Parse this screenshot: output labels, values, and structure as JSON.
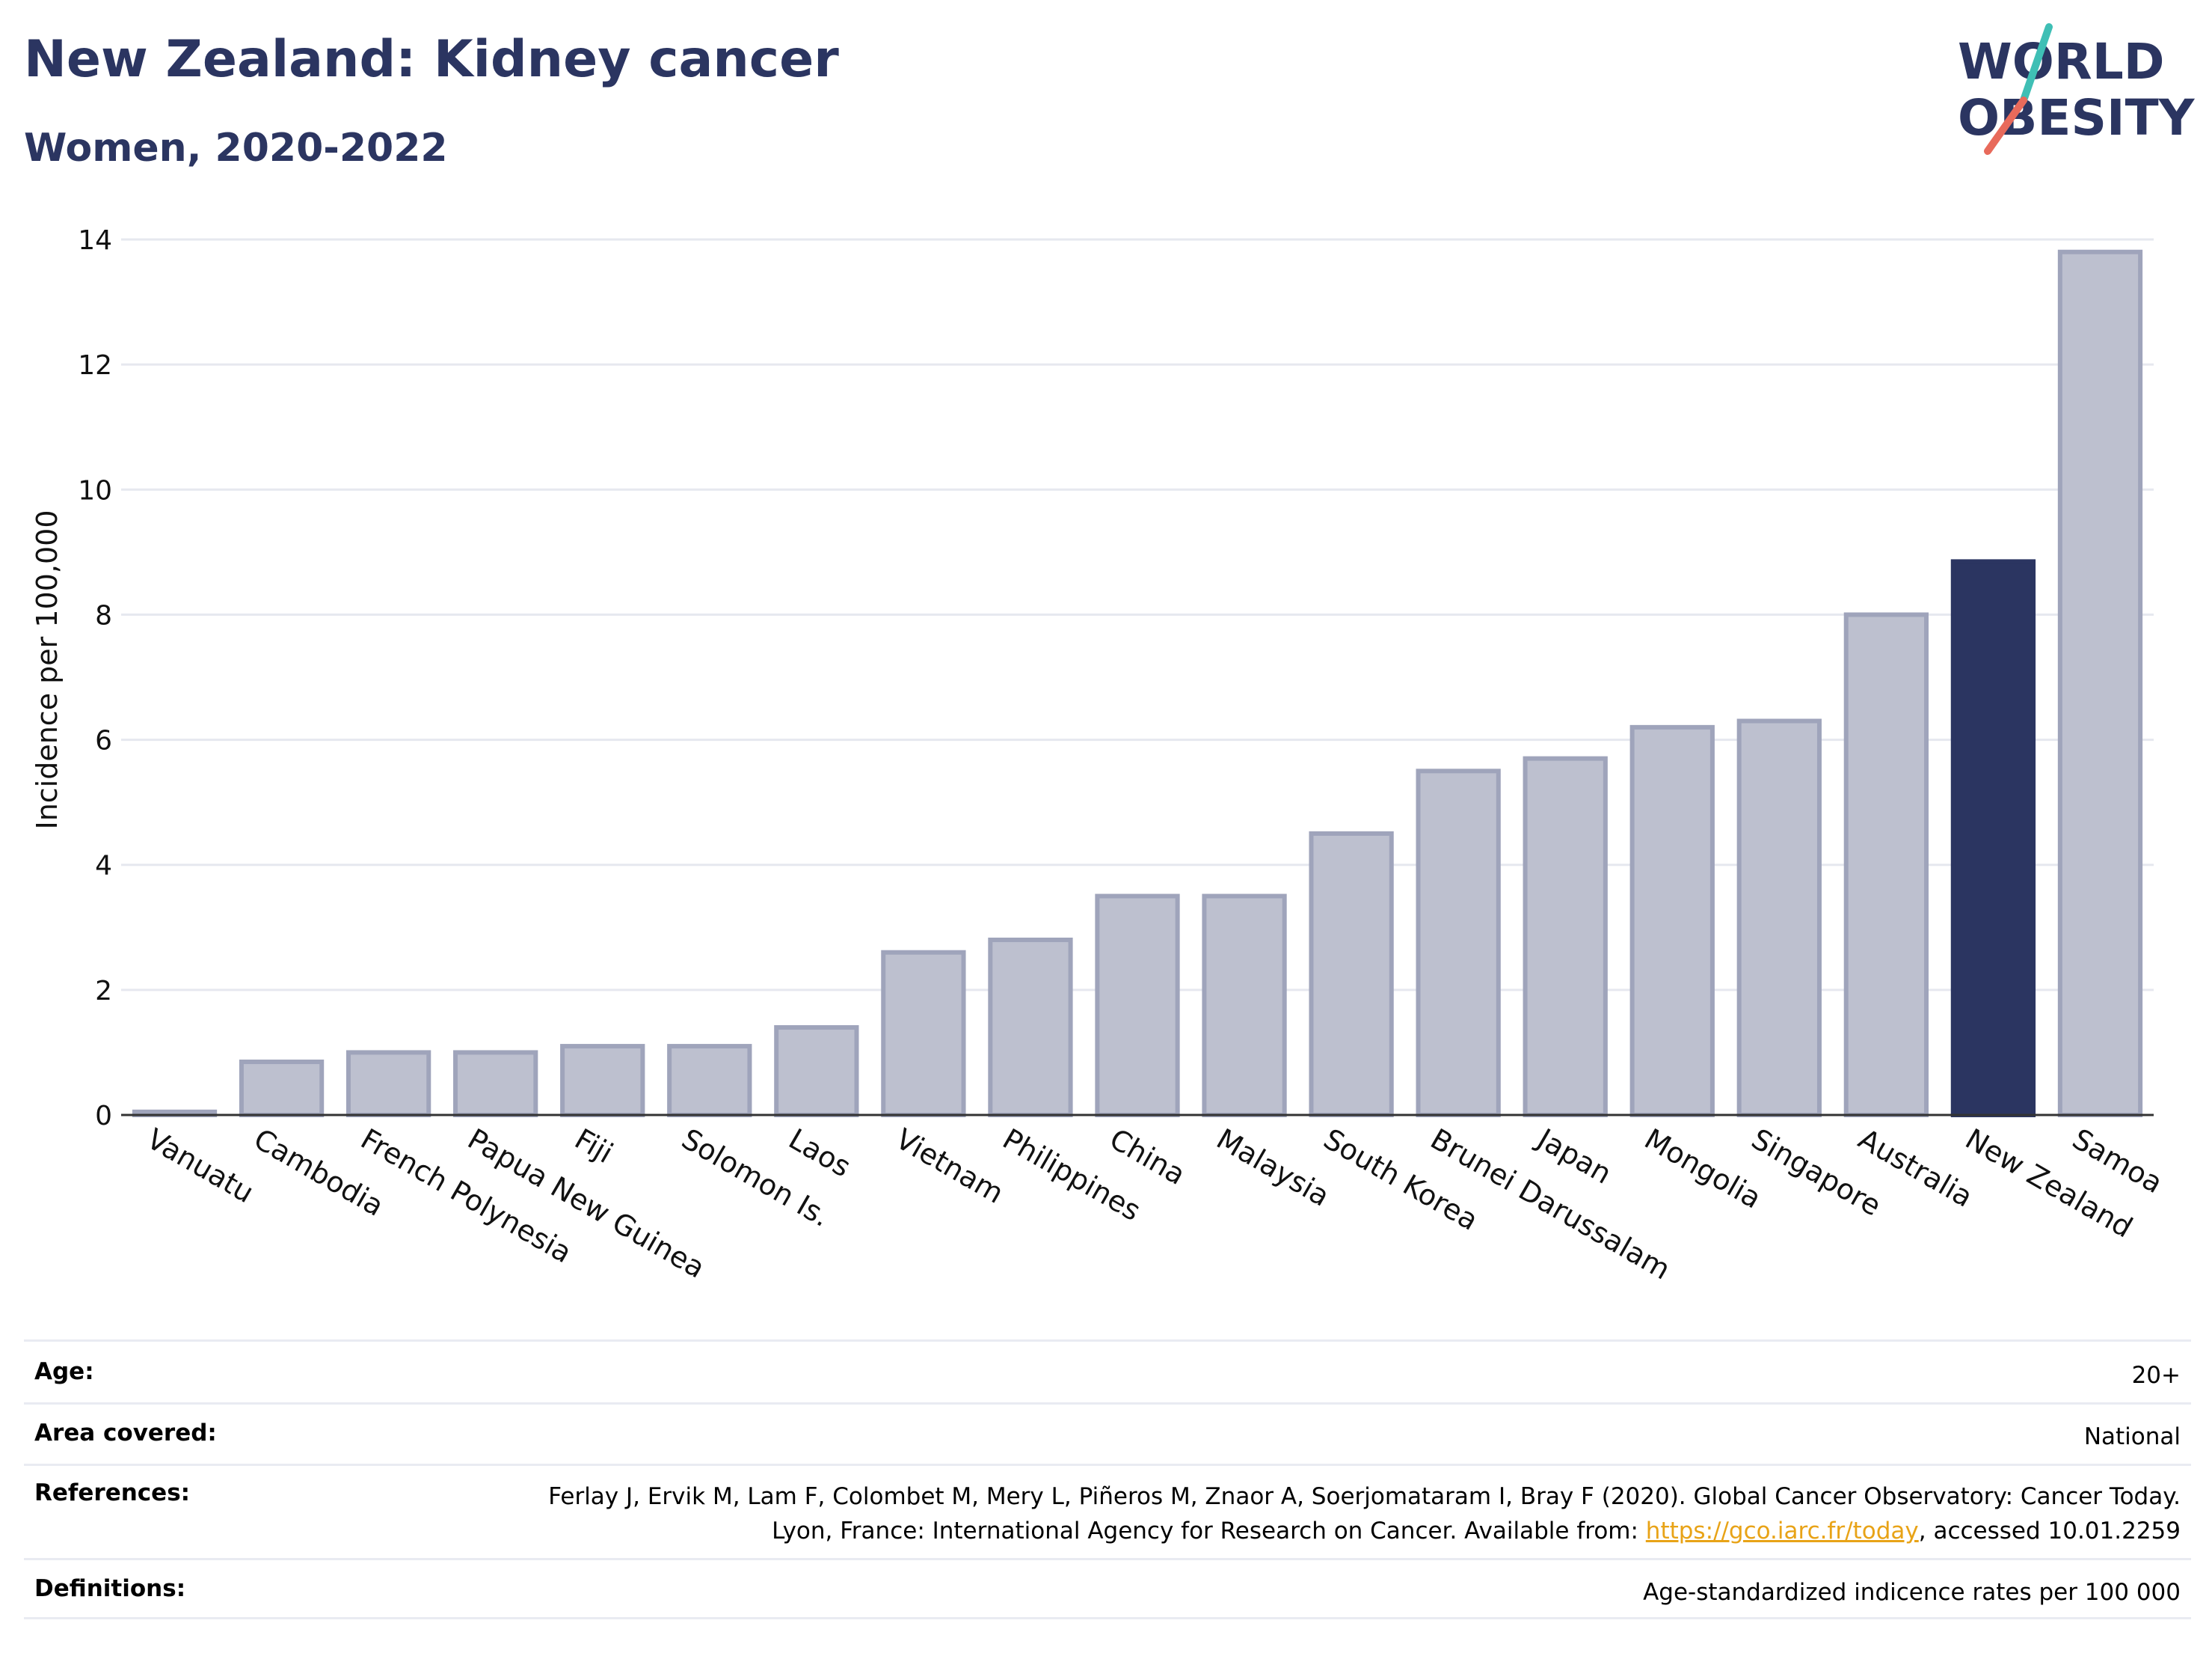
{
  "header": {
    "title": "New Zealand: Kidney cancer",
    "subtitle": "Women, 2020-2022"
  },
  "logo": {
    "line1": "WORLD",
    "line2": "OBESITY",
    "text_color": "#2b3561",
    "accent_colors": [
      "#3fbfb5",
      "#e86a5b"
    ]
  },
  "chart_data": {
    "type": "bar",
    "ylabel": "Incidence per 100,000",
    "xlabel": "",
    "ylim": [
      0,
      14
    ],
    "yticks": [
      0,
      2,
      4,
      6,
      8,
      10,
      12,
      14
    ],
    "grid": true,
    "categories": [
      "Vanuatu",
      "Cambodia",
      "French Polynesia",
      "Papua New Guinea",
      "Fiji",
      "Solomon Is.",
      "Laos",
      "Vietnam",
      "Philippines",
      "China",
      "Malaysia",
      "South Korea",
      "Brunei Darussalam",
      "Japan",
      "Mongolia",
      "Singapore",
      "Australia",
      "New Zealand",
      "Samoa"
    ],
    "values": [
      0.05,
      0.85,
      1.0,
      1.0,
      1.1,
      1.1,
      1.4,
      2.6,
      2.8,
      3.5,
      3.5,
      4.5,
      5.5,
      5.7,
      6.2,
      6.3,
      8.0,
      8.85,
      13.8
    ],
    "highlight": "New Zealand",
    "bar_color": "#bdc0cf",
    "bar_border_color": "#9fa4bb",
    "highlight_color": "#2b3561"
  },
  "info": {
    "age_label": "Age:",
    "age_value": "20+",
    "area_label": "Area covered:",
    "area_value": "National",
    "references_label": "References:",
    "references_text": "Ferlay J, Ervik M, Lam F, Colombet M, Mery L, Piñeros M, Znaor A, Soerjomataram I, Bray F (2020). Global Cancer Observatory: Cancer Today. Lyon, France: International Agency for Research on Cancer. Available from: ",
    "references_link": "https://gco.iarc.fr/today",
    "references_suffix": ", accessed 10.01.2259",
    "definitions_label": "Definitions:",
    "definitions_value": "Age-standardized indicence rates per 100 000"
  }
}
